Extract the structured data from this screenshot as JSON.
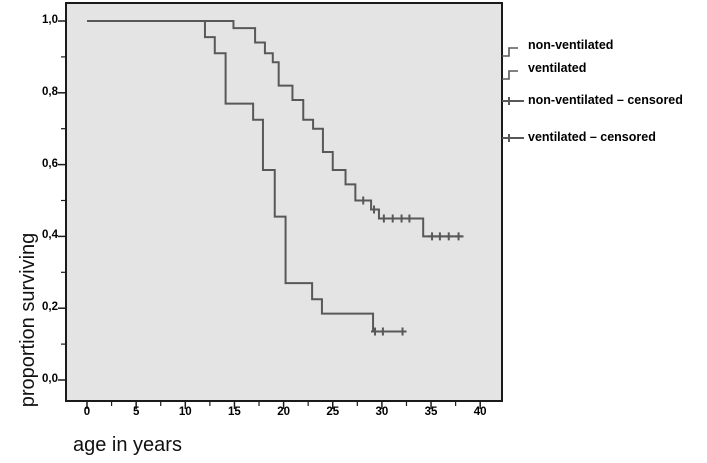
{
  "figure": {
    "background": "#ffffff",
    "plot_bg": "#e5e4e4",
    "frame_color": "#1a1a1a",
    "curve_color": "#585858",
    "text_color": "#000000"
  },
  "chart_data": {
    "type": "line",
    "subtype": "kaplan-meier-step-survival",
    "title": "",
    "xlabel": "age in years",
    "ylabel": "proportion surviving",
    "xlim": [
      0,
      40
    ],
    "ylim": [
      0.0,
      1.0
    ],
    "grid": false,
    "legend_position": "right",
    "x_ticks": {
      "values": [
        0,
        5,
        10,
        15,
        20,
        25,
        30,
        35,
        40
      ],
      "labels": [
        "0",
        "5",
        "10",
        "15",
        "20",
        "25",
        "30",
        "35",
        "40"
      ],
      "minor_values": [
        2.5,
        7.5,
        12.5,
        17.5,
        22.5,
        27.5,
        32.5,
        37.5
      ]
    },
    "y_ticks": {
      "values": [
        0,
        0.2,
        0.4,
        0.6,
        0.8,
        1.0
      ],
      "labels": [
        "0,0",
        "0,2",
        "0,4",
        "0,6",
        "0,8",
        "1,0"
      ],
      "minor_values": [
        0.1,
        0.3,
        0.5,
        0.7,
        0.9
      ]
    },
    "series": [
      {
        "name": "non-ventilated",
        "style": "step",
        "steps": [
          [
            0,
            1.0
          ],
          [
            14.9,
            0.98
          ],
          [
            17.1,
            0.94
          ],
          [
            18.1,
            0.91
          ],
          [
            18.9,
            0.885
          ],
          [
            19.5,
            0.82
          ],
          [
            20.9,
            0.78
          ],
          [
            22.0,
            0.725
          ],
          [
            23.0,
            0.7
          ],
          [
            24.0,
            0.635
          ],
          [
            25.0,
            0.585
          ],
          [
            26.3,
            0.545
          ],
          [
            27.3,
            0.5
          ],
          [
            28.9,
            0.475
          ],
          [
            29.7,
            0.45
          ],
          [
            34.2,
            0.4
          ]
        ],
        "end_x": 38.3,
        "censored": [
          [
            28.1,
            0.5
          ],
          [
            29.2,
            0.475
          ],
          [
            30.2,
            0.45
          ],
          [
            31.1,
            0.45
          ],
          [
            32.0,
            0.45
          ],
          [
            32.8,
            0.45
          ],
          [
            35.1,
            0.4
          ],
          [
            35.9,
            0.4
          ],
          [
            36.8,
            0.4
          ],
          [
            37.8,
            0.4
          ]
        ]
      },
      {
        "name": "ventilated",
        "style": "step",
        "steps": [
          [
            0,
            1.0
          ],
          [
            12.0,
            0.955
          ],
          [
            13.0,
            0.91
          ],
          [
            14.1,
            0.77
          ],
          [
            16.9,
            0.725
          ],
          [
            17.9,
            0.585
          ],
          [
            19.1,
            0.455
          ],
          [
            20.2,
            0.27
          ],
          [
            22.9,
            0.225
          ],
          [
            23.9,
            0.185
          ],
          [
            29.1,
            0.135
          ]
        ],
        "end_x": 32.4,
        "censored": [
          [
            29.3,
            0.135
          ],
          [
            30.1,
            0.135
          ],
          [
            32.1,
            0.135
          ]
        ]
      }
    ],
    "legend": [
      {
        "label": "non-ventilated",
        "glyph": "step"
      },
      {
        "label": "ventilated",
        "glyph": "step"
      },
      {
        "label": "non-ventilated – censored",
        "glyph": "plus"
      },
      {
        "label": "ventilated – censored",
        "glyph": "plus"
      }
    ]
  }
}
